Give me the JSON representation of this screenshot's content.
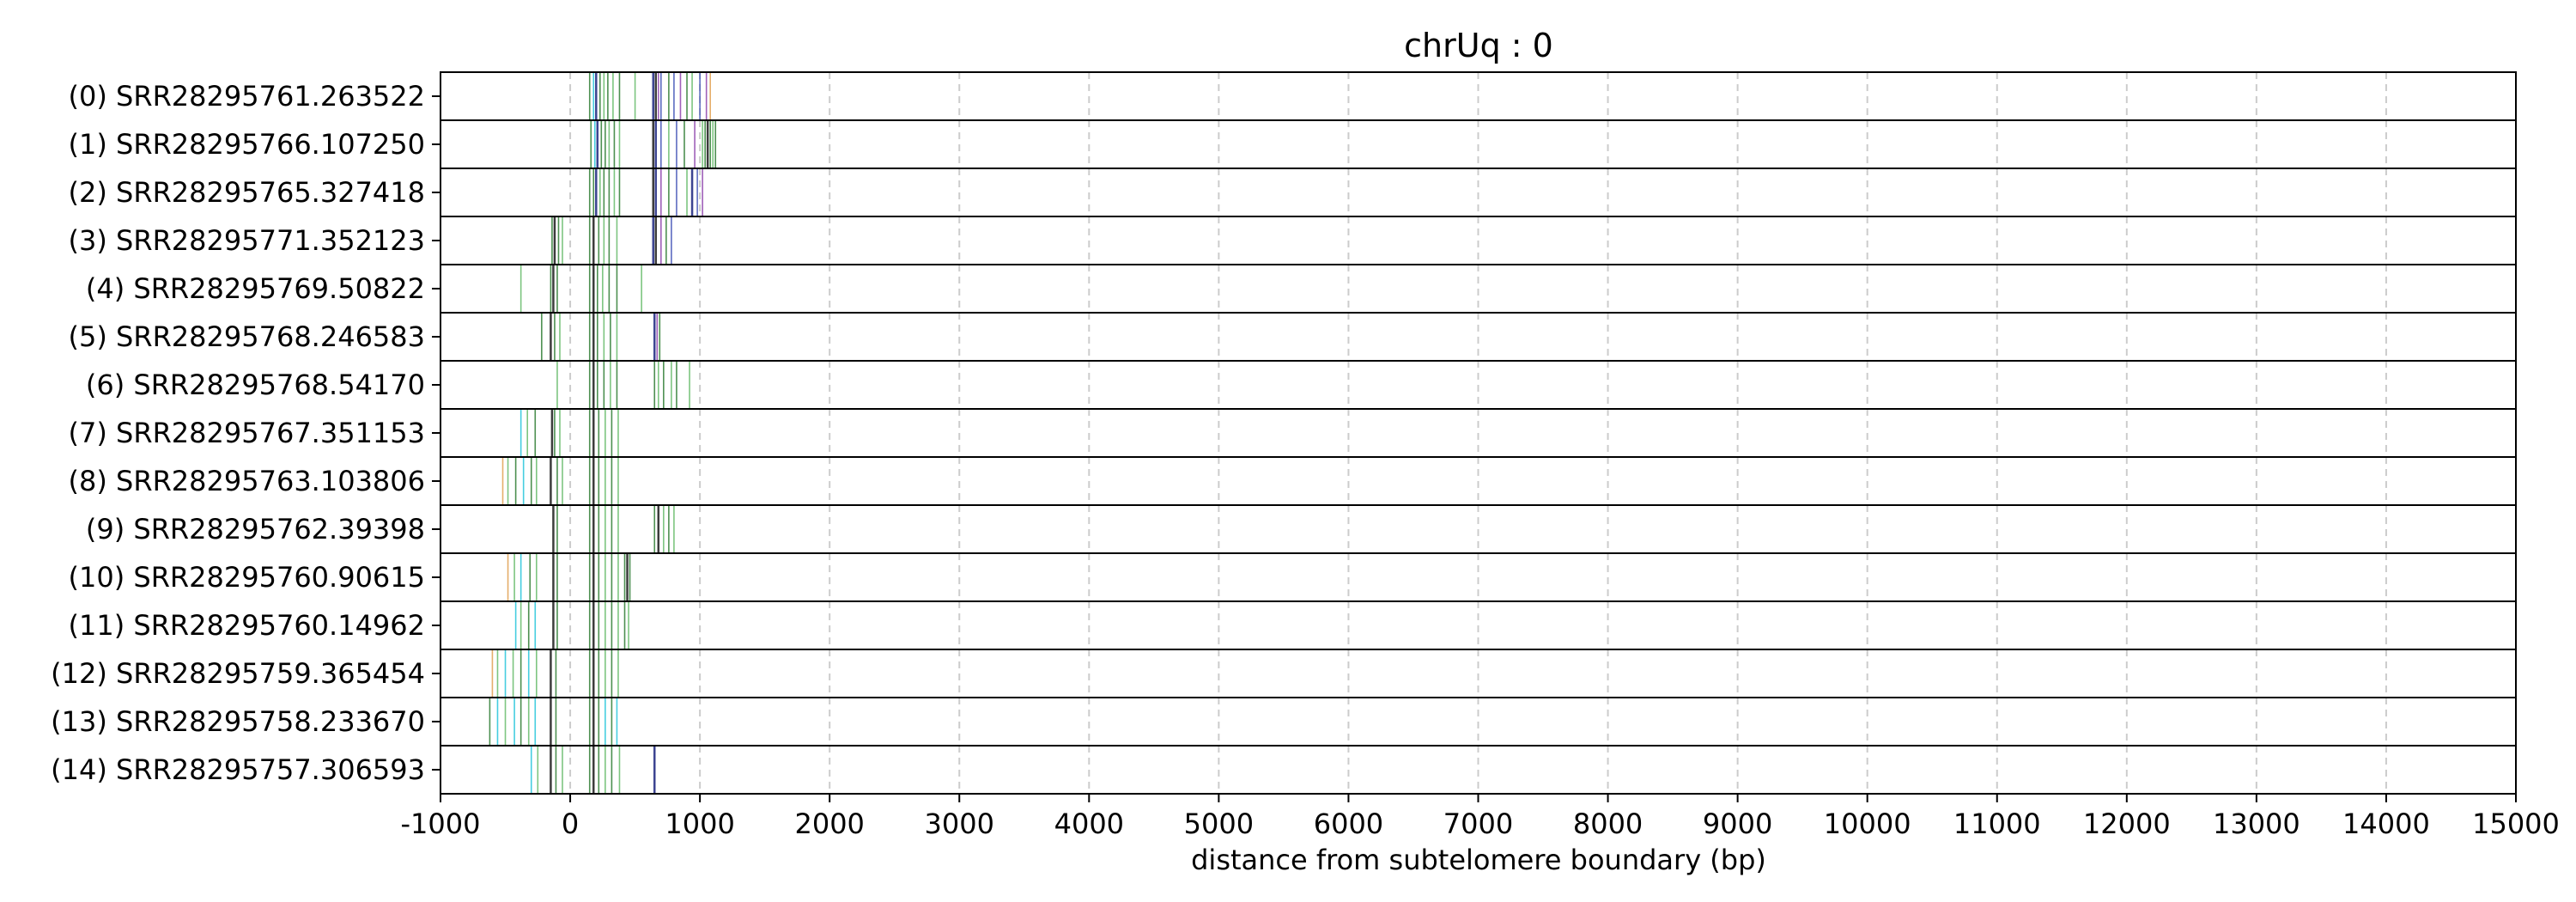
{
  "chart_data": {
    "type": "barcode",
    "title": "chrUq : 0",
    "xlabel": "distance from subtelomere boundary (bp)",
    "xlim": [
      -1000,
      15000
    ],
    "xticks": [
      -1000,
      0,
      1000,
      2000,
      3000,
      4000,
      5000,
      6000,
      7000,
      8000,
      9000,
      10000,
      11000,
      12000,
      13000,
      14000,
      15000
    ],
    "grid": "vertical dashed lines at x ticks",
    "colors": {
      "dark": "#1a1a1a",
      "green": "#2e7d32",
      "lightgreen": "#66bb6a",
      "cyan": "#26c6da",
      "orange": "#e0a050",
      "navy": "#1a237e",
      "blue": "#3f51b5",
      "purple": "#8e44ad",
      "gridline": "#cccccc"
    },
    "reads": [
      {
        "label": "(0) SRR28295761.263522",
        "marks": [
          [
            150,
            "green"
          ],
          [
            180,
            "cyan"
          ],
          [
            200,
            "navy"
          ],
          [
            230,
            "green"
          ],
          [
            260,
            "lightgreen"
          ],
          [
            290,
            "green"
          ],
          [
            330,
            "lightgreen"
          ],
          [
            380,
            "green"
          ],
          [
            500,
            "lightgreen"
          ],
          [
            640,
            "navy"
          ],
          [
            660,
            "dark"
          ],
          [
            680,
            "purple"
          ],
          [
            700,
            "blue"
          ],
          [
            760,
            "green"
          ],
          [
            800,
            "blue"
          ],
          [
            850,
            "purple"
          ],
          [
            900,
            "green"
          ],
          [
            940,
            "lightgreen"
          ],
          [
            1000,
            "blue"
          ],
          [
            1050,
            "purple"
          ],
          [
            1080,
            "orange"
          ]
        ]
      },
      {
        "label": "(1) SRR28295766.107250",
        "marks": [
          [
            160,
            "green"
          ],
          [
            190,
            "cyan"
          ],
          [
            210,
            "navy"
          ],
          [
            240,
            "green"
          ],
          [
            270,
            "green"
          ],
          [
            300,
            "lightgreen"
          ],
          [
            340,
            "green"
          ],
          [
            380,
            "lightgreen"
          ],
          [
            640,
            "dark"
          ],
          [
            660,
            "navy"
          ],
          [
            700,
            "blue"
          ],
          [
            760,
            "lightgreen"
          ],
          [
            820,
            "blue"
          ],
          [
            880,
            "green"
          ],
          [
            960,
            "purple"
          ],
          [
            1020,
            "lightgreen"
          ],
          [
            1040,
            "green"
          ],
          [
            1060,
            "dark"
          ],
          [
            1080,
            "green"
          ],
          [
            1100,
            "lightgreen"
          ],
          [
            1120,
            "green"
          ]
        ]
      },
      {
        "label": "(2) SRR28295765.327418",
        "marks": [
          [
            150,
            "green"
          ],
          [
            180,
            "green"
          ],
          [
            200,
            "navy"
          ],
          [
            230,
            "lightgreen"
          ],
          [
            260,
            "green"
          ],
          [
            300,
            "green"
          ],
          [
            340,
            "lightgreen"
          ],
          [
            380,
            "green"
          ],
          [
            640,
            "dark"
          ],
          [
            660,
            "navy"
          ],
          [
            700,
            "purple"
          ],
          [
            760,
            "green"
          ],
          [
            820,
            "blue"
          ],
          [
            900,
            "lightgreen"
          ],
          [
            940,
            "navy"
          ],
          [
            980,
            "blue"
          ],
          [
            1020,
            "purple"
          ]
        ]
      },
      {
        "label": "(3) SRR28295771.352123",
        "marks": [
          [
            -140,
            "green"
          ],
          [
            -120,
            "dark"
          ],
          [
            -90,
            "green"
          ],
          [
            -60,
            "lightgreen"
          ],
          [
            150,
            "green"
          ],
          [
            180,
            "dark"
          ],
          [
            220,
            "green"
          ],
          [
            260,
            "lightgreen"
          ],
          [
            300,
            "green"
          ],
          [
            360,
            "lightgreen"
          ],
          [
            640,
            "navy"
          ],
          [
            660,
            "dark"
          ],
          [
            700,
            "purple"
          ],
          [
            740,
            "green"
          ],
          [
            780,
            "blue"
          ]
        ]
      },
      {
        "label": "(4) SRR28295769.50822",
        "marks": [
          [
            -380,
            "lightgreen"
          ],
          [
            -150,
            "green"
          ],
          [
            -130,
            "dark"
          ],
          [
            -100,
            "green"
          ],
          [
            150,
            "green"
          ],
          [
            180,
            "dark"
          ],
          [
            210,
            "green"
          ],
          [
            250,
            "lightgreen"
          ],
          [
            300,
            "green"
          ],
          [
            360,
            "green"
          ],
          [
            550,
            "lightgreen"
          ]
        ]
      },
      {
        "label": "(5) SRR28295768.246583",
        "marks": [
          [
            -220,
            "green"
          ],
          [
            -150,
            "dark"
          ],
          [
            -120,
            "green"
          ],
          [
            -80,
            "lightgreen"
          ],
          [
            150,
            "green"
          ],
          [
            180,
            "dark"
          ],
          [
            210,
            "green"
          ],
          [
            260,
            "lightgreen"
          ],
          [
            310,
            "green"
          ],
          [
            360,
            "lightgreen"
          ],
          [
            650,
            "navy"
          ],
          [
            670,
            "purple"
          ],
          [
            690,
            "green"
          ]
        ]
      },
      {
        "label": "(6) SRR28295768.54170",
        "marks": [
          [
            -100,
            "lightgreen"
          ],
          [
            150,
            "green"
          ],
          [
            180,
            "dark"
          ],
          [
            210,
            "green"
          ],
          [
            260,
            "green"
          ],
          [
            310,
            "lightgreen"
          ],
          [
            360,
            "green"
          ],
          [
            650,
            "green"
          ],
          [
            680,
            "lightgreen"
          ],
          [
            720,
            "green"
          ],
          [
            780,
            "lightgreen"
          ],
          [
            820,
            "green"
          ],
          [
            920,
            "lightgreen"
          ]
        ]
      },
      {
        "label": "(7) SRR28295767.351153",
        "marks": [
          [
            -380,
            "cyan"
          ],
          [
            -330,
            "lightgreen"
          ],
          [
            -270,
            "green"
          ],
          [
            -140,
            "dark"
          ],
          [
            -120,
            "green"
          ],
          [
            -80,
            "lightgreen"
          ],
          [
            150,
            "green"
          ],
          [
            180,
            "dark"
          ],
          [
            220,
            "green"
          ],
          [
            270,
            "lightgreen"
          ],
          [
            320,
            "green"
          ],
          [
            370,
            "lightgreen"
          ]
        ]
      },
      {
        "label": "(8) SRR28295763.103806",
        "marks": [
          [
            -520,
            "orange"
          ],
          [
            -480,
            "lightgreen"
          ],
          [
            -420,
            "green"
          ],
          [
            -360,
            "cyan"
          ],
          [
            -300,
            "green"
          ],
          [
            -260,
            "lightgreen"
          ],
          [
            -150,
            "dark"
          ],
          [
            -100,
            "green"
          ],
          [
            -60,
            "lightgreen"
          ],
          [
            150,
            "green"
          ],
          [
            180,
            "dark"
          ],
          [
            220,
            "green"
          ],
          [
            270,
            "lightgreen"
          ],
          [
            320,
            "green"
          ],
          [
            370,
            "lightgreen"
          ]
        ]
      },
      {
        "label": "(9) SRR28295762.39398",
        "marks": [
          [
            -130,
            "dark"
          ],
          [
            -100,
            "green"
          ],
          [
            150,
            "green"
          ],
          [
            180,
            "dark"
          ],
          [
            220,
            "green"
          ],
          [
            270,
            "lightgreen"
          ],
          [
            320,
            "green"
          ],
          [
            370,
            "lightgreen"
          ],
          [
            650,
            "green"
          ],
          [
            680,
            "dark"
          ],
          [
            720,
            "lightgreen"
          ],
          [
            760,
            "green"
          ],
          [
            800,
            "lightgreen"
          ]
        ]
      },
      {
        "label": "(10) SRR28295760.90615",
        "marks": [
          [
            -480,
            "orange"
          ],
          [
            -430,
            "lightgreen"
          ],
          [
            -380,
            "cyan"
          ],
          [
            -310,
            "green"
          ],
          [
            -260,
            "lightgreen"
          ],
          [
            -130,
            "dark"
          ],
          [
            -100,
            "green"
          ],
          [
            150,
            "green"
          ],
          [
            180,
            "dark"
          ],
          [
            220,
            "green"
          ],
          [
            270,
            "lightgreen"
          ],
          [
            320,
            "green"
          ],
          [
            370,
            "lightgreen"
          ],
          [
            420,
            "green"
          ],
          [
            440,
            "dark"
          ],
          [
            460,
            "green"
          ]
        ]
      },
      {
        "label": "(11) SRR28295760.14962",
        "marks": [
          [
            -420,
            "cyan"
          ],
          [
            -380,
            "lightgreen"
          ],
          [
            -320,
            "green"
          ],
          [
            -270,
            "cyan"
          ],
          [
            -130,
            "dark"
          ],
          [
            -100,
            "green"
          ],
          [
            150,
            "green"
          ],
          [
            180,
            "dark"
          ],
          [
            220,
            "green"
          ],
          [
            270,
            "lightgreen"
          ],
          [
            320,
            "green"
          ],
          [
            370,
            "lightgreen"
          ],
          [
            420,
            "green"
          ],
          [
            450,
            "lightgreen"
          ]
        ]
      },
      {
        "label": "(12) SRR28295759.365454",
        "marks": [
          [
            -600,
            "orange"
          ],
          [
            -560,
            "lightgreen"
          ],
          [
            -500,
            "cyan"
          ],
          [
            -440,
            "lightgreen"
          ],
          [
            -380,
            "green"
          ],
          [
            -320,
            "cyan"
          ],
          [
            -260,
            "lightgreen"
          ],
          [
            -150,
            "dark"
          ],
          [
            -110,
            "green"
          ],
          [
            150,
            "green"
          ],
          [
            180,
            "dark"
          ],
          [
            220,
            "green"
          ],
          [
            270,
            "lightgreen"
          ],
          [
            320,
            "green"
          ],
          [
            370,
            "lightgreen"
          ]
        ]
      },
      {
        "label": "(13) SRR28295758.233670",
        "marks": [
          [
            -620,
            "green"
          ],
          [
            -560,
            "cyan"
          ],
          [
            -500,
            "lightgreen"
          ],
          [
            -430,
            "cyan"
          ],
          [
            -380,
            "green"
          ],
          [
            -320,
            "lightgreen"
          ],
          [
            -270,
            "cyan"
          ],
          [
            -150,
            "dark"
          ],
          [
            -110,
            "green"
          ],
          [
            150,
            "green"
          ],
          [
            180,
            "dark"
          ],
          [
            220,
            "green"
          ],
          [
            270,
            "cyan"
          ],
          [
            320,
            "green"
          ],
          [
            360,
            "cyan"
          ]
        ]
      },
      {
        "label": "(14) SRR28295757.306593",
        "marks": [
          [
            -300,
            "cyan"
          ],
          [
            -250,
            "lightgreen"
          ],
          [
            -150,
            "dark"
          ],
          [
            -110,
            "green"
          ],
          [
            -60,
            "lightgreen"
          ],
          [
            150,
            "green"
          ],
          [
            180,
            "dark"
          ],
          [
            220,
            "green"
          ],
          [
            270,
            "lightgreen"
          ],
          [
            320,
            "green"
          ],
          [
            380,
            "lightgreen"
          ],
          [
            650,
            "navy"
          ]
        ]
      }
    ]
  }
}
